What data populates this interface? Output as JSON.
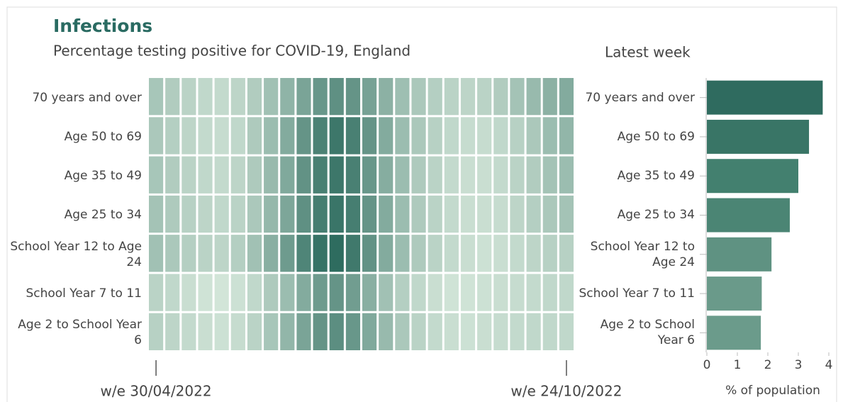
{
  "chart_data": [
    {
      "type": "heatmap",
      "title": "Infections",
      "subtitle": "Percentage testing positive for COVID-19, England",
      "categories": [
        "w/e 30/04/2022",
        null,
        null,
        null,
        null,
        null,
        null,
        null,
        null,
        null,
        null,
        null,
        null,
        null,
        null,
        null,
        null,
        null,
        null,
        null,
        null,
        null,
        null,
        null,
        null,
        "w/e 24/10/2022"
      ],
      "color_scale": [
        "#d2e5d8",
        "#2e6c5f"
      ],
      "series": [
        {
          "name": "70 years and over",
          "values": [
            2.6,
            2.3,
            2.0,
            1.8,
            1.7,
            1.9,
            2.3,
            2.8,
            3.4,
            4.1,
            4.7,
            5.0,
            4.8,
            4.2,
            3.5,
            2.9,
            2.5,
            2.2,
            2.0,
            1.9,
            2.0,
            2.3,
            2.7,
            3.1,
            3.5,
            3.8
          ]
        },
        {
          "name": "Age 50 to 69",
          "values": [
            2.5,
            2.2,
            1.9,
            1.7,
            1.6,
            1.8,
            2.4,
            3.0,
            3.8,
            4.8,
            5.6,
            6.1,
            5.7,
            4.8,
            3.8,
            3.0,
            2.5,
            2.1,
            1.8,
            1.6,
            1.6,
            1.8,
            2.1,
            2.5,
            3.0,
            3.3
          ]
        },
        {
          "name": "Age 35 to 49",
          "values": [
            2.6,
            2.3,
            2.0,
            1.8,
            1.7,
            1.9,
            2.4,
            3.1,
            3.9,
            4.9,
            5.7,
            6.1,
            5.7,
            4.7,
            3.7,
            3.0,
            2.4,
            2.0,
            1.7,
            1.5,
            1.5,
            1.7,
            2.0,
            2.3,
            2.7,
            3.0
          ]
        },
        {
          "name": "Age 25 to 34",
          "values": [
            2.7,
            2.4,
            2.1,
            1.9,
            1.8,
            2.0,
            2.5,
            3.2,
            4.0,
            5.0,
            5.8,
            6.2,
            5.8,
            4.8,
            3.8,
            3.0,
            2.4,
            2.0,
            1.7,
            1.5,
            1.5,
            1.6,
            1.9,
            2.2,
            2.5,
            2.7
          ]
        },
        {
          "name": "School Year 12 to Age 24",
          "values": [
            2.8,
            2.5,
            2.2,
            2.0,
            1.9,
            2.2,
            2.8,
            3.6,
            4.5,
            5.5,
            6.3,
            6.6,
            6.0,
            4.9,
            3.8,
            3.0,
            2.4,
            2.0,
            1.7,
            1.5,
            1.4,
            1.5,
            1.7,
            1.9,
            2.1,
            2.1
          ]
        },
        {
          "name": "School Year 7 to 11",
          "values": [
            2.0,
            1.8,
            1.5,
            1.3,
            1.2,
            1.4,
            1.8,
            2.4,
            3.0,
            3.8,
            4.5,
            4.8,
            4.4,
            3.6,
            2.8,
            2.2,
            1.8,
            1.5,
            1.3,
            1.3,
            1.4,
            1.5,
            1.6,
            1.7,
            1.8,
            1.8
          ]
        },
        {
          "name": "Age 2 to School Year 6",
          "values": [
            2.1,
            1.9,
            1.7,
            1.5,
            1.4,
            1.6,
            2.0,
            2.6,
            3.3,
            4.1,
            4.8,
            5.1,
            4.7,
            3.9,
            3.1,
            2.5,
            2.0,
            1.7,
            1.5,
            1.4,
            1.5,
            1.6,
            1.7,
            1.8,
            1.8,
            1.8
          ]
        }
      ]
    },
    {
      "type": "hbar",
      "title": "Latest week",
      "xlabel": "% of population",
      "categories": [
        "70 years and over",
        "Age 50 to 69",
        "Age 35 to 49",
        "Age 25 to 34",
        "School Year 12 to Age 24",
        "School Year 7 to 11",
        "Age 2 to School Year 6"
      ],
      "values": [
        3.8,
        3.35,
        3.0,
        2.72,
        2.12,
        1.8,
        1.77
      ],
      "colors": [
        "#2f6b5f",
        "#397566",
        "#43806f",
        "#4b8574",
        "#5f9282",
        "#6a9a8a",
        "#6b9b8b"
      ],
      "xlim": [
        0,
        4
      ],
      "xticks": [
        0,
        1,
        2,
        3,
        4
      ]
    }
  ]
}
